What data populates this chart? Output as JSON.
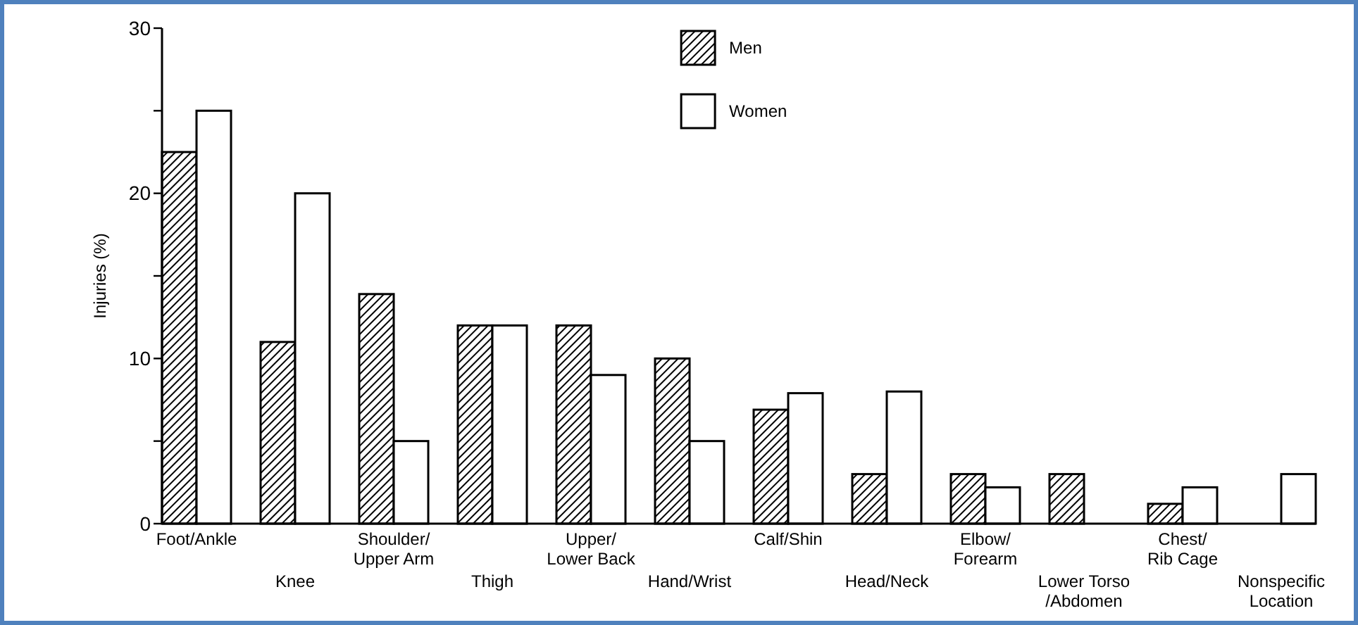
{
  "chart_data": {
    "type": "bar",
    "ylabel": "Injuries (%)",
    "categories": [
      "Foot/Ankle",
      "Knee",
      "Shoulder/\nUpper Arm",
      "Thigh",
      "Upper/\nLower Back",
      "Hand/Wrist",
      "Calf/Shin",
      "Head/Neck",
      "Elbow/\nForearm",
      "Lower Torso\n/Abdomen",
      "Chest/\nRib Cage",
      "Nonspecific\nLocation"
    ],
    "series": [
      {
        "name": "Men",
        "color": "#000000",
        "values": [
          22.5,
          11,
          13.9,
          12,
          12,
          10,
          6.9,
          3,
          3,
          3,
          1.2,
          null
        ]
      },
      {
        "name": "Women",
        "color": "#ffffff",
        "values": [
          25,
          20,
          5,
          12,
          9,
          5,
          7.9,
          8,
          2.2,
          null,
          2.2,
          3
        ]
      }
    ],
    "ylim": [
      0,
      30
    ],
    "yticks": [
      0,
      {
        "value": 5,
        "label": null
      },
      10,
      {
        "value": 15,
        "label": null
      },
      20,
      {
        "value": 25,
        "label": null
      },
      30
    ],
    "legend": "top",
    "grid": false
  }
}
